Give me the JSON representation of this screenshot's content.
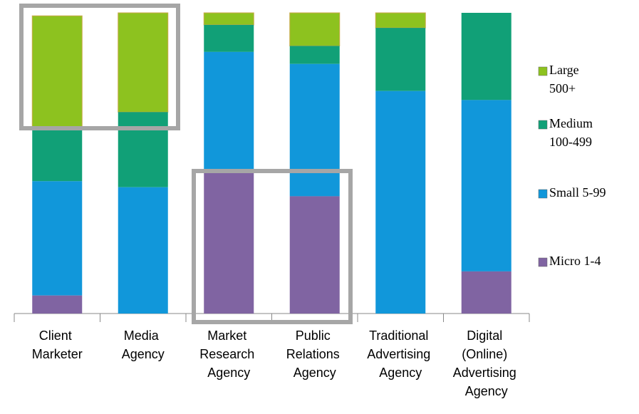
{
  "chart_data": {
    "type": "stacked_bar",
    "categories": [
      "Client Marketer",
      "Media Agency",
      "Market Research Agency",
      "Public Relations Agency",
      "Traditional Advertising Agency",
      "Digital (Online) Advertising Agency"
    ],
    "series": [
      {
        "name": "Micro 1-4",
        "color": "#8064a2",
        "values": [
          6,
          null,
          48,
          39,
          null,
          14
        ],
        "value_labels": [
          "6%",
          null,
          "48%",
          "39%",
          null,
          "14%"
        ]
      },
      {
        "name": "Small 5-99",
        "color": "#1197da",
        "values": [
          38,
          42,
          39,
          44,
          74,
          57
        ],
        "value_labels": [
          "38%",
          "42%",
          "39%",
          "44%",
          "74%",
          "57%"
        ]
      },
      {
        "name": "Medium 100-499",
        "color": "#11a077",
        "values": [
          17,
          25,
          9,
          6,
          21,
          29
        ],
        "value_labels": [
          "17%",
          "25%",
          "9%",
          "6%",
          "21%",
          "29%"
        ]
      },
      {
        "name": "Large 500+",
        "color": "#8dc21f",
        "values": [
          38,
          33,
          4,
          11,
          5,
          null
        ],
        "value_labels": [
          "38%",
          "33%",
          "4%",
          "11%",
          "5%",
          null
        ]
      }
    ],
    "ylim": [
      0,
      100
    ],
    "legend": "right"
  }
}
